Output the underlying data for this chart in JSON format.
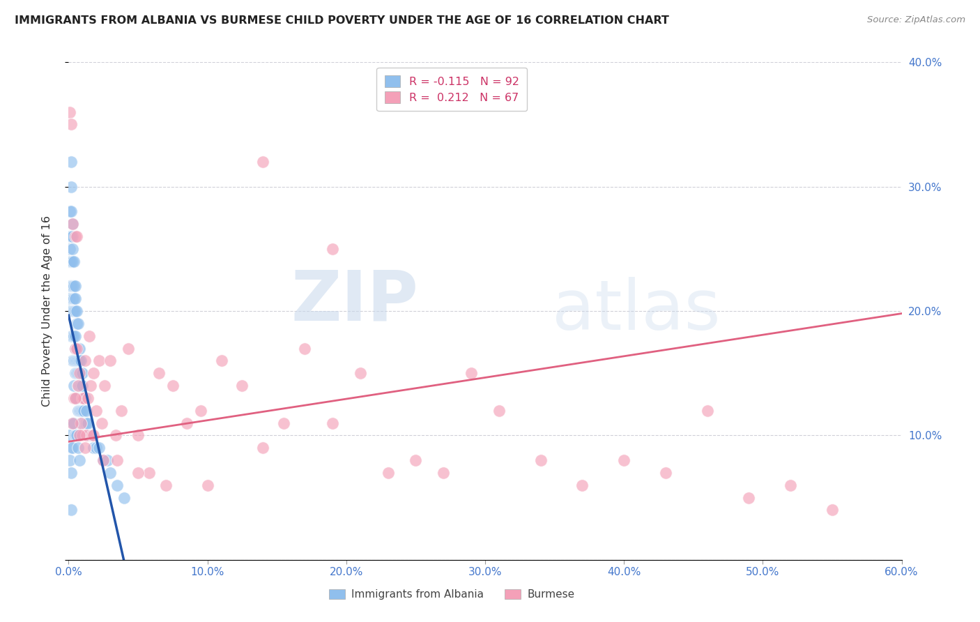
{
  "title": "IMMIGRANTS FROM ALBANIA VS BURMESE CHILD POVERTY UNDER THE AGE OF 16 CORRELATION CHART",
  "source": "Source: ZipAtlas.com",
  "ylabel": "Child Poverty Under the Age of 16",
  "xlim": [
    0.0,
    0.6
  ],
  "ylim": [
    0.0,
    0.4
  ],
  "xticks": [
    0.0,
    0.1,
    0.2,
    0.3,
    0.4,
    0.5,
    0.6
  ],
  "yticks": [
    0.0,
    0.1,
    0.2,
    0.3,
    0.4
  ],
  "xticklabels": [
    "0.0%",
    "10.0%",
    "20.0%",
    "30.0%",
    "40.0%",
    "50.0%",
    "60.0%"
  ],
  "right_yticklabels": [
    "10.0%",
    "20.0%",
    "30.0%",
    "40.0%"
  ],
  "albania_color": "#90bfed",
  "burmese_color": "#f4a0b8",
  "albania_line_color": "#2255aa",
  "burmese_line_color": "#e06080",
  "dashed_line_color": "#aabbd8",
  "legend_albania_label": "Immigrants from Albania",
  "legend_burmese_label": "Burmese",
  "albania_R": -0.115,
  "albania_N": 92,
  "burmese_R": 0.212,
  "burmese_N": 67,
  "watermark_zip": "ZIP",
  "watermark_atlas": "atlas",
  "background_color": "#ffffff",
  "albania_x": [
    0.001,
    0.001,
    0.001,
    0.001,
    0.001,
    0.001,
    0.001,
    0.002,
    0.002,
    0.002,
    0.002,
    0.002,
    0.002,
    0.002,
    0.003,
    0.003,
    0.003,
    0.003,
    0.003,
    0.003,
    0.003,
    0.003,
    0.003,
    0.004,
    0.004,
    0.004,
    0.004,
    0.004,
    0.004,
    0.004,
    0.005,
    0.005,
    0.005,
    0.005,
    0.005,
    0.005,
    0.005,
    0.005,
    0.006,
    0.006,
    0.006,
    0.006,
    0.006,
    0.006,
    0.007,
    0.007,
    0.007,
    0.007,
    0.007,
    0.007,
    0.008,
    0.008,
    0.008,
    0.008,
    0.009,
    0.009,
    0.009,
    0.009,
    0.01,
    0.01,
    0.01,
    0.01,
    0.01,
    0.011,
    0.011,
    0.012,
    0.012,
    0.013,
    0.013,
    0.014,
    0.015,
    0.016,
    0.018,
    0.02,
    0.022,
    0.025,
    0.028,
    0.03,
    0.035,
    0.04,
    0.001,
    0.001,
    0.002,
    0.002,
    0.003,
    0.003,
    0.004,
    0.005,
    0.006,
    0.007,
    0.008,
    0.002
  ],
  "albania_y": [
    0.28,
    0.26,
    0.25,
    0.24,
    0.22,
    0.21,
    0.2,
    0.32,
    0.3,
    0.28,
    0.26,
    0.24,
    0.22,
    0.18,
    0.27,
    0.26,
    0.25,
    0.24,
    0.22,
    0.21,
    0.2,
    0.18,
    0.16,
    0.24,
    0.22,
    0.21,
    0.2,
    0.18,
    0.16,
    0.14,
    0.22,
    0.21,
    0.2,
    0.18,
    0.17,
    0.16,
    0.15,
    0.13,
    0.2,
    0.19,
    0.17,
    0.16,
    0.15,
    0.13,
    0.19,
    0.17,
    0.16,
    0.15,
    0.14,
    0.12,
    0.17,
    0.16,
    0.14,
    0.12,
    0.16,
    0.15,
    0.14,
    0.12,
    0.15,
    0.14,
    0.13,
    0.12,
    0.11,
    0.13,
    0.12,
    0.13,
    0.11,
    0.12,
    0.11,
    0.11,
    0.1,
    0.1,
    0.09,
    0.09,
    0.09,
    0.08,
    0.08,
    0.07,
    0.06,
    0.05,
    0.1,
    0.08,
    0.09,
    0.07,
    0.11,
    0.09,
    0.11,
    0.1,
    0.1,
    0.09,
    0.08,
    0.04
  ],
  "burmese_x": [
    0.001,
    0.002,
    0.003,
    0.004,
    0.005,
    0.005,
    0.006,
    0.006,
    0.007,
    0.008,
    0.009,
    0.01,
    0.01,
    0.011,
    0.012,
    0.013,
    0.014,
    0.015,
    0.016,
    0.017,
    0.018,
    0.02,
    0.022,
    0.024,
    0.026,
    0.03,
    0.034,
    0.038,
    0.043,
    0.05,
    0.058,
    0.065,
    0.075,
    0.085,
    0.095,
    0.11,
    0.125,
    0.14,
    0.155,
    0.17,
    0.19,
    0.21,
    0.23,
    0.25,
    0.27,
    0.29,
    0.31,
    0.34,
    0.37,
    0.4,
    0.43,
    0.46,
    0.49,
    0.52,
    0.55,
    0.003,
    0.005,
    0.008,
    0.012,
    0.018,
    0.025,
    0.035,
    0.05,
    0.07,
    0.1,
    0.14,
    0.19
  ],
  "burmese_y": [
    0.36,
    0.35,
    0.27,
    0.13,
    0.17,
    0.26,
    0.17,
    0.26,
    0.14,
    0.15,
    0.11,
    0.13,
    0.1,
    0.13,
    0.16,
    0.1,
    0.13,
    0.18,
    0.14,
    0.1,
    0.15,
    0.12,
    0.16,
    0.11,
    0.14,
    0.16,
    0.1,
    0.12,
    0.17,
    0.1,
    0.07,
    0.15,
    0.14,
    0.11,
    0.12,
    0.16,
    0.14,
    0.09,
    0.11,
    0.17,
    0.11,
    0.15,
    0.07,
    0.08,
    0.07,
    0.15,
    0.12,
    0.08,
    0.06,
    0.08,
    0.07,
    0.12,
    0.05,
    0.06,
    0.04,
    0.11,
    0.13,
    0.1,
    0.09,
    0.1,
    0.08,
    0.08,
    0.07,
    0.06,
    0.06,
    0.32,
    0.25
  ]
}
